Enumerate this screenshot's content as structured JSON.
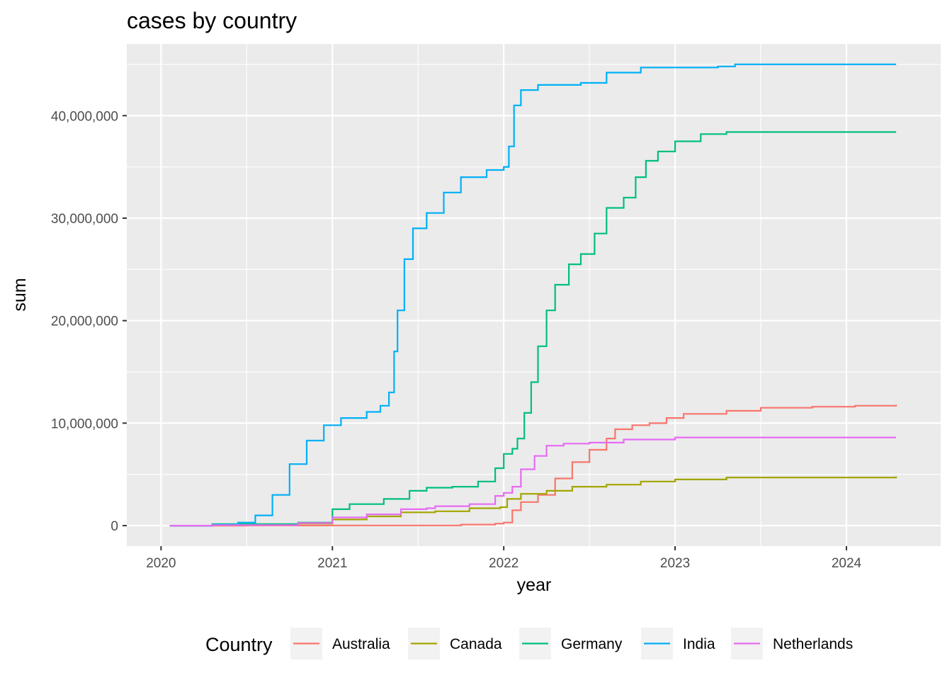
{
  "chart_data": {
    "type": "line",
    "title": "cases by country",
    "xlabel": "year",
    "ylabel": "sum",
    "xlim": [
      2019.8,
      2024.55
    ],
    "ylim": [
      -2000000,
      47000000
    ],
    "x_ticks": [
      2020,
      2021,
      2022,
      2023,
      2024
    ],
    "x_tick_labels": [
      "2020",
      "2021",
      "2022",
      "2023",
      "2024"
    ],
    "y_ticks": [
      0,
      10000000,
      20000000,
      30000000,
      40000000
    ],
    "y_tick_labels": [
      "0",
      "10,000,000",
      "20,000,000",
      "30,000,000",
      "40,000,000"
    ],
    "grid": true,
    "legend": {
      "title": "Country",
      "position": "bottom"
    },
    "series": [
      {
        "name": "Australia",
        "color": "#F8766D",
        "points": [
          [
            2020.05,
            0
          ],
          [
            2020.5,
            10000
          ],
          [
            2021.0,
            20000
          ],
          [
            2021.5,
            20000
          ],
          [
            2021.75,
            100000
          ],
          [
            2021.95,
            200000
          ],
          [
            2022.0,
            300000
          ],
          [
            2022.05,
            1500000
          ],
          [
            2022.1,
            2300000
          ],
          [
            2022.2,
            3000000
          ],
          [
            2022.3,
            4600000
          ],
          [
            2022.4,
            6200000
          ],
          [
            2022.5,
            7400000
          ],
          [
            2022.6,
            8500000
          ],
          [
            2022.65,
            9400000
          ],
          [
            2022.75,
            9800000
          ],
          [
            2022.85,
            10000000
          ],
          [
            2022.95,
            10500000
          ],
          [
            2023.05,
            10900000
          ],
          [
            2023.3,
            11200000
          ],
          [
            2023.5,
            11500000
          ],
          [
            2023.8,
            11600000
          ],
          [
            2024.05,
            11700000
          ],
          [
            2024.29,
            11800000
          ]
        ]
      },
      {
        "name": "Canada",
        "color": "#A3A500",
        "points": [
          [
            2020.05,
            0
          ],
          [
            2020.3,
            100000
          ],
          [
            2020.8,
            200000
          ],
          [
            2021.0,
            600000
          ],
          [
            2021.2,
            900000
          ],
          [
            2021.4,
            1300000
          ],
          [
            2021.6,
            1400000
          ],
          [
            2021.8,
            1700000
          ],
          [
            2021.98,
            1800000
          ],
          [
            2022.02,
            2600000
          ],
          [
            2022.1,
            3100000
          ],
          [
            2022.25,
            3400000
          ],
          [
            2022.4,
            3800000
          ],
          [
            2022.6,
            4000000
          ],
          [
            2022.8,
            4300000
          ],
          [
            2023.0,
            4500000
          ],
          [
            2023.3,
            4700000
          ],
          [
            2023.7,
            4700000
          ],
          [
            2024.29,
            4800000
          ]
        ]
      },
      {
        "name": "Germany",
        "color": "#00BF7D",
        "points": [
          [
            2020.05,
            0
          ],
          [
            2020.3,
            150000
          ],
          [
            2020.8,
            300000
          ],
          [
            2021.0,
            1600000
          ],
          [
            2021.1,
            2100000
          ],
          [
            2021.3,
            2600000
          ],
          [
            2021.45,
            3400000
          ],
          [
            2021.55,
            3700000
          ],
          [
            2021.7,
            3800000
          ],
          [
            2021.85,
            4300000
          ],
          [
            2021.95,
            5600000
          ],
          [
            2022.0,
            7000000
          ],
          [
            2022.05,
            7500000
          ],
          [
            2022.08,
            8500000
          ],
          [
            2022.12,
            11000000
          ],
          [
            2022.16,
            14000000
          ],
          [
            2022.2,
            17500000
          ],
          [
            2022.25,
            21000000
          ],
          [
            2022.3,
            23500000
          ],
          [
            2022.38,
            25500000
          ],
          [
            2022.45,
            26500000
          ],
          [
            2022.53,
            28500000
          ],
          [
            2022.6,
            31000000
          ],
          [
            2022.7,
            32000000
          ],
          [
            2022.77,
            34000000
          ],
          [
            2022.83,
            35600000
          ],
          [
            2022.9,
            36500000
          ],
          [
            2023.0,
            37500000
          ],
          [
            2023.15,
            38200000
          ],
          [
            2023.3,
            38400000
          ],
          [
            2024.29,
            38400000
          ]
        ]
      },
      {
        "name": "India",
        "color": "#00B0F6",
        "points": [
          [
            2020.05,
            0
          ],
          [
            2020.3,
            100000
          ],
          [
            2020.45,
            300000
          ],
          [
            2020.55,
            1000000
          ],
          [
            2020.65,
            3000000
          ],
          [
            2020.75,
            6000000
          ],
          [
            2020.85,
            8300000
          ],
          [
            2020.95,
            9800000
          ],
          [
            2021.05,
            10500000
          ],
          [
            2021.2,
            11100000
          ],
          [
            2021.28,
            11700000
          ],
          [
            2021.33,
            13000000
          ],
          [
            2021.36,
            17000000
          ],
          [
            2021.38,
            21000000
          ],
          [
            2021.42,
            26000000
          ],
          [
            2021.47,
            29000000
          ],
          [
            2021.55,
            30500000
          ],
          [
            2021.65,
            32500000
          ],
          [
            2021.75,
            34000000
          ],
          [
            2021.9,
            34700000
          ],
          [
            2022.0,
            35000000
          ],
          [
            2022.03,
            37000000
          ],
          [
            2022.06,
            41000000
          ],
          [
            2022.1,
            42500000
          ],
          [
            2022.2,
            43000000
          ],
          [
            2022.45,
            43200000
          ],
          [
            2022.6,
            44200000
          ],
          [
            2022.8,
            44700000
          ],
          [
            2023.25,
            44800000
          ],
          [
            2023.35,
            45000000
          ],
          [
            2024.29,
            45000000
          ]
        ]
      },
      {
        "name": "Netherlands",
        "color": "#E76BF3",
        "points": [
          [
            2020.05,
            0
          ],
          [
            2020.3,
            50000
          ],
          [
            2020.8,
            250000
          ],
          [
            2021.0,
            800000
          ],
          [
            2021.2,
            1100000
          ],
          [
            2021.4,
            1600000
          ],
          [
            2021.55,
            1700000
          ],
          [
            2021.6,
            1900000
          ],
          [
            2021.8,
            2100000
          ],
          [
            2021.95,
            2900000
          ],
          [
            2022.0,
            3200000
          ],
          [
            2022.05,
            3800000
          ],
          [
            2022.1,
            5500000
          ],
          [
            2022.18,
            6800000
          ],
          [
            2022.25,
            7800000
          ],
          [
            2022.35,
            8000000
          ],
          [
            2022.5,
            8100000
          ],
          [
            2022.7,
            8400000
          ],
          [
            2023.0,
            8600000
          ],
          [
            2024.29,
            8600000
          ]
        ]
      }
    ]
  }
}
